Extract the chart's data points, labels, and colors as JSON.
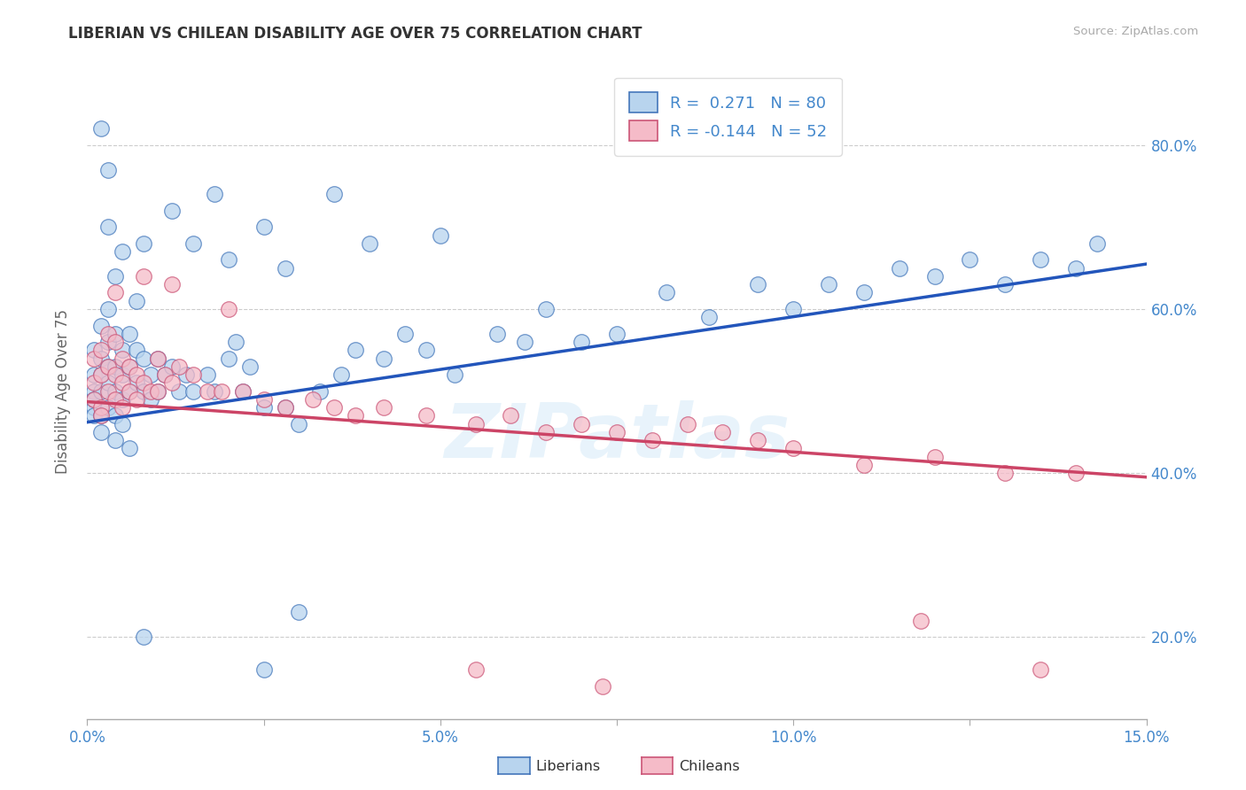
{
  "title": "LIBERIAN VS CHILEAN DISABILITY AGE OVER 75 CORRELATION CHART",
  "source_text": "Source: ZipAtlas.com",
  "ylabel": "Disability Age Over 75",
  "xlim": [
    0.0,
    0.15
  ],
  "ylim": [
    0.1,
    0.9
  ],
  "ytick_labels": [
    "20.0%",
    "40.0%",
    "60.0%",
    "80.0%"
  ],
  "ytick_positions": [
    0.2,
    0.4,
    0.6,
    0.8
  ],
  "liberian_fill": "#b8d4ee",
  "liberian_edge": "#4477bb",
  "chilean_fill": "#f5bbc8",
  "chilean_edge": "#cc5577",
  "liberian_line": "#2255bb",
  "chilean_line": "#cc4466",
  "R_liberian": 0.271,
  "N_liberian": 80,
  "R_chilean": -0.144,
  "N_chilean": 52,
  "legend_label_1": "Liberians",
  "legend_label_2": "Chileans",
  "background_color": "#ffffff",
  "lib_trend_x0": 0.0,
  "lib_trend_y0": 0.462,
  "lib_trend_x1": 0.15,
  "lib_trend_y1": 0.655,
  "chi_trend_x0": 0.0,
  "chi_trend_y0": 0.487,
  "chi_trend_x1": 0.15,
  "chi_trend_y1": 0.395,
  "liberian_x": [
    0.001,
    0.001,
    0.001,
    0.001,
    0.001,
    0.001,
    0.002,
    0.002,
    0.002,
    0.002,
    0.002,
    0.002,
    0.003,
    0.003,
    0.003,
    0.003,
    0.003,
    0.004,
    0.004,
    0.004,
    0.004,
    0.004,
    0.004,
    0.005,
    0.005,
    0.005,
    0.005,
    0.005,
    0.006,
    0.006,
    0.006,
    0.006,
    0.007,
    0.007,
    0.007,
    0.008,
    0.008,
    0.009,
    0.009,
    0.01,
    0.01,
    0.011,
    0.012,
    0.013,
    0.014,
    0.015,
    0.017,
    0.018,
    0.02,
    0.021,
    0.022,
    0.023,
    0.025,
    0.028,
    0.03,
    0.033,
    0.036,
    0.038,
    0.042,
    0.045,
    0.048,
    0.052,
    0.058,
    0.062,
    0.065,
    0.07,
    0.075,
    0.082,
    0.088,
    0.095,
    0.1,
    0.105,
    0.11,
    0.115,
    0.12,
    0.125,
    0.13,
    0.135,
    0.14,
    0.143
  ],
  "liberian_y": [
    0.48,
    0.5,
    0.52,
    0.55,
    0.47,
    0.49,
    0.5,
    0.54,
    0.58,
    0.47,
    0.52,
    0.45,
    0.51,
    0.53,
    0.56,
    0.48,
    0.6,
    0.5,
    0.53,
    0.57,
    0.44,
    0.47,
    0.64,
    0.49,
    0.52,
    0.55,
    0.46,
    0.67,
    0.5,
    0.53,
    0.57,
    0.43,
    0.51,
    0.55,
    0.61,
    0.5,
    0.54,
    0.52,
    0.49,
    0.5,
    0.54,
    0.52,
    0.53,
    0.5,
    0.52,
    0.5,
    0.52,
    0.5,
    0.54,
    0.56,
    0.5,
    0.53,
    0.48,
    0.48,
    0.46,
    0.5,
    0.52,
    0.55,
    0.54,
    0.57,
    0.55,
    0.52,
    0.57,
    0.56,
    0.6,
    0.56,
    0.57,
    0.62,
    0.59,
    0.63,
    0.6,
    0.63,
    0.62,
    0.65,
    0.64,
    0.66,
    0.63,
    0.66,
    0.65,
    0.68
  ],
  "chilean_x": [
    0.001,
    0.001,
    0.001,
    0.002,
    0.002,
    0.002,
    0.002,
    0.003,
    0.003,
    0.003,
    0.004,
    0.004,
    0.004,
    0.005,
    0.005,
    0.005,
    0.006,
    0.006,
    0.007,
    0.007,
    0.008,
    0.009,
    0.01,
    0.01,
    0.011,
    0.012,
    0.013,
    0.015,
    0.017,
    0.019,
    0.022,
    0.025,
    0.028,
    0.032,
    0.035,
    0.038,
    0.042,
    0.048,
    0.055,
    0.06,
    0.065,
    0.07,
    0.075,
    0.08,
    0.085,
    0.09,
    0.095,
    0.1,
    0.11,
    0.12,
    0.13,
    0.14
  ],
  "chilean_y": [
    0.49,
    0.51,
    0.54,
    0.48,
    0.52,
    0.55,
    0.47,
    0.5,
    0.53,
    0.57,
    0.49,
    0.52,
    0.56,
    0.48,
    0.51,
    0.54,
    0.5,
    0.53,
    0.49,
    0.52,
    0.51,
    0.5,
    0.5,
    0.54,
    0.52,
    0.51,
    0.53,
    0.52,
    0.5,
    0.5,
    0.5,
    0.49,
    0.48,
    0.49,
    0.48,
    0.47,
    0.48,
    0.47,
    0.46,
    0.47,
    0.45,
    0.46,
    0.45,
    0.44,
    0.46,
    0.45,
    0.44,
    0.43,
    0.41,
    0.42,
    0.4,
    0.4
  ]
}
